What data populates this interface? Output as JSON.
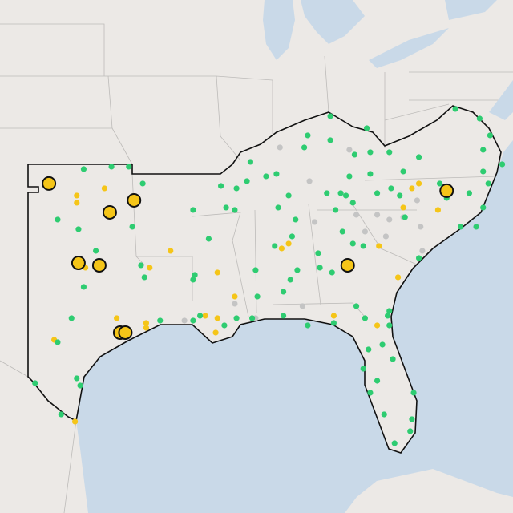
{
  "map": {
    "extent": {
      "lon": [
        -104.62,
        -75.08
      ],
      "lat": [
        43.83,
        22.5
      ]
    },
    "series": [
      {
        "color": "#f5c518",
        "marker": "large",
        "points": [
          [
            -101.8,
            36.2
          ],
          [
            -96.9,
            35.5
          ],
          [
            -98.3,
            35.0
          ],
          [
            -100.1,
            32.9
          ],
          [
            -98.9,
            32.8
          ],
          [
            -97.7,
            30.0
          ],
          [
            -97.4,
            30.0
          ],
          [
            -84.6,
            32.8
          ],
          [
            -78.9,
            35.9
          ]
        ]
      },
      {
        "color": "#f5c518",
        "marker": "small",
        "points": [
          [
            -100.2,
            35.7
          ],
          [
            -100.2,
            35.4
          ],
          [
            -98.6,
            36.0
          ],
          [
            -94.8,
            33.4
          ],
          [
            -96.0,
            32.7
          ],
          [
            -99.7,
            32.7
          ],
          [
            -97.9,
            30.6
          ],
          [
            -96.2,
            30.4
          ],
          [
            -96.2,
            30.2
          ],
          [
            -92.1,
            32.5
          ],
          [
            -91.1,
            31.5
          ],
          [
            -92.2,
            30.0
          ],
          [
            -92.1,
            30.6
          ],
          [
            -92.8,
            30.7
          ],
          [
            -88.0,
            33.7
          ],
          [
            -88.4,
            33.5
          ],
          [
            -85.4,
            30.7
          ],
          [
            -82.9,
            30.3
          ],
          [
            -81.7,
            32.3
          ],
          [
            -80.9,
            36.0
          ],
          [
            -80.5,
            36.2
          ],
          [
            -81.4,
            35.2
          ],
          [
            -79.4,
            35.1
          ],
          [
            -82.8,
            33.6
          ],
          [
            -100.3,
            26.3
          ],
          [
            -101.5,
            29.7
          ]
        ]
      },
      {
        "color": "#c4c4c4",
        "marker": "small",
        "points": [
          [
            -88.5,
            37.7
          ],
          [
            -86.8,
            36.3
          ],
          [
            -84.5,
            37.6
          ],
          [
            -86.5,
            34.6
          ],
          [
            -82.9,
            34.9
          ],
          [
            -82.2,
            34.7
          ],
          [
            -81.4,
            34.8
          ],
          [
            -84.1,
            34.9
          ],
          [
            -82.4,
            34.0
          ],
          [
            -80.4,
            34.4
          ],
          [
            -80.3,
            33.4
          ],
          [
            -94.0,
            30.5
          ],
          [
            -91.1,
            31.2
          ],
          [
            -89.9,
            30.6
          ],
          [
            -87.2,
            31.1
          ],
          [
            -83.6,
            34.2
          ],
          [
            -80.6,
            35.5
          ]
        ]
      },
      {
        "color": "#2ecc71",
        "marker": "small",
        "points": [
          [
            -99.8,
            36.8
          ],
          [
            -98.2,
            36.9
          ],
          [
            -97.2,
            36.9
          ],
          [
            -96.4,
            36.2
          ],
          [
            -101.3,
            34.7
          ],
          [
            -100.1,
            34.3
          ],
          [
            -97.0,
            34.4
          ],
          [
            -99.1,
            33.4
          ],
          [
            -99.8,
            31.9
          ],
          [
            -96.5,
            32.8
          ],
          [
            -96.3,
            32.3
          ],
          [
            -100.5,
            30.6
          ],
          [
            -101.3,
            29.6
          ],
          [
            -100.2,
            28.1
          ],
          [
            -100.0,
            27.8
          ],
          [
            -102.6,
            27.9
          ],
          [
            -101.1,
            26.6
          ],
          [
            -95.4,
            30.5
          ],
          [
            -93.5,
            30.5
          ],
          [
            -93.5,
            32.2
          ],
          [
            -93.5,
            35.1
          ],
          [
            -92.6,
            33.9
          ],
          [
            -93.4,
            32.4
          ],
          [
            -91.6,
            35.2
          ],
          [
            -91.9,
            36.1
          ],
          [
            -91.0,
            36.0
          ],
          [
            -89.9,
            32.6
          ],
          [
            -88.8,
            33.6
          ],
          [
            -87.5,
            32.6
          ],
          [
            -88.3,
            31.7
          ],
          [
            -89.8,
            31.5
          ],
          [
            -91.0,
            30.6
          ],
          [
            -90.1,
            30.6
          ],
          [
            -93.1,
            30.7
          ],
          [
            -91.7,
            30.3
          ],
          [
            -88.3,
            30.7
          ],
          [
            -90.2,
            37.1
          ],
          [
            -89.3,
            36.5
          ],
          [
            -88.7,
            36.6
          ],
          [
            -88.0,
            35.7
          ],
          [
            -87.1,
            37.7
          ],
          [
            -86.9,
            38.2
          ],
          [
            -85.6,
            39.0
          ],
          [
            -85.6,
            38.0
          ],
          [
            -83.5,
            38.5
          ],
          [
            -83.3,
            37.5
          ],
          [
            -84.2,
            37.4
          ],
          [
            -82.2,
            37.5
          ],
          [
            -80.5,
            37.3
          ],
          [
            -81.4,
            36.7
          ],
          [
            -83.3,
            36.6
          ],
          [
            -84.5,
            36.5
          ],
          [
            -85.8,
            35.8
          ],
          [
            -85.0,
            35.8
          ],
          [
            -85.3,
            35.1
          ],
          [
            -87.6,
            34.7
          ],
          [
            -88.6,
            35.2
          ],
          [
            -87.8,
            34.0
          ],
          [
            -87.9,
            32.2
          ],
          [
            -84.9,
            34.2
          ],
          [
            -86.3,
            33.3
          ],
          [
            -84.3,
            33.7
          ],
          [
            -82.9,
            35.8
          ],
          [
            -82.1,
            36.0
          ],
          [
            -84.7,
            35.7
          ],
          [
            -84.3,
            35.4
          ],
          [
            -81.6,
            35.7
          ],
          [
            -81.3,
            34.8
          ],
          [
            -78.9,
            35.6
          ],
          [
            -79.3,
            36.2
          ],
          [
            -77.6,
            35.8
          ],
          [
            -76.5,
            36.2
          ],
          [
            -76.8,
            35.2
          ],
          [
            -77.2,
            34.4
          ],
          [
            -78.1,
            34.4
          ],
          [
            -78.4,
            39.3
          ],
          [
            -77.0,
            38.9
          ],
          [
            -76.4,
            38.2
          ],
          [
            -76.8,
            37.6
          ],
          [
            -76.8,
            36.7
          ],
          [
            -75.7,
            37.0
          ],
          [
            -90.4,
            36.3
          ],
          [
            -91.1,
            35.1
          ],
          [
            -86.9,
            30.3
          ],
          [
            -85.4,
            30.4
          ],
          [
            -83.6,
            30.6
          ],
          [
            -82.3,
            30.7
          ],
          [
            -82.2,
            30.3
          ],
          [
            -82.6,
            29.5
          ],
          [
            -83.4,
            29.3
          ],
          [
            -82.9,
            28.0
          ],
          [
            -83.3,
            27.5
          ],
          [
            -83.7,
            28.5
          ],
          [
            -82.0,
            28.9
          ],
          [
            -80.8,
            27.5
          ],
          [
            -80.9,
            26.4
          ],
          [
            -81.9,
            25.4
          ],
          [
            -81.0,
            25.9
          ],
          [
            -82.5,
            26.6
          ],
          [
            -86.2,
            32.7
          ],
          [
            -85.5,
            32.5
          ],
          [
            -83.7,
            33.6
          ],
          [
            -82.2,
            30.9
          ],
          [
            -84.1,
            31.1
          ],
          [
            -80.5,
            33.1
          ]
        ]
      }
    ]
  }
}
